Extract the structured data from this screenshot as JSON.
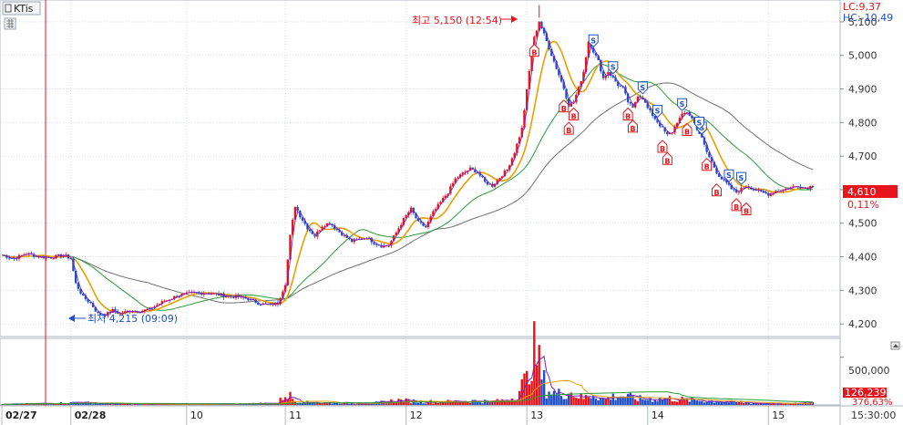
{
  "ticker": "KTis",
  "indicators": {
    "lc": "LC:9,37",
    "hc": "HC:-10,49"
  },
  "annotations": {
    "high": "최고 5,150 (12:54)",
    "low": "최저 4,215 (09:09)"
  },
  "price_tag": {
    "value": "4,610",
    "change": "0,11%"
  },
  "volume_tag": {
    "value": "126,239",
    "ratio": "376,63%"
  },
  "price_axis_labels": [
    "5,100",
    "5,000",
    "4,900",
    "4,800",
    "4,700",
    "4,600",
    "4,500",
    "4,400",
    "4,300",
    "4,200"
  ],
  "volume_axis_labels": [
    "500,000"
  ],
  "date_labels": [
    "02/27",
    "02/28",
    "10",
    "11",
    "12",
    "13",
    "14",
    "15"
  ],
  "time_label": "15:30:00",
  "colors": {
    "up": "#e8141c",
    "down": "#1f4fc8",
    "ma1": "#e8a000",
    "ma2": "#2a9a3a",
    "ma3": "#707070",
    "ma_fast": "#7a1fc8"
  },
  "chart_data": {
    "type": "candlestick",
    "price_ylim": [
      4165,
      5165
    ],
    "volume_ylim": [
      0,
      650000
    ],
    "legend": [],
    "day_labels": [
      "02/27",
      "02/28",
      "10",
      "11",
      "12",
      "13",
      "14",
      "15"
    ],
    "price_path": [
      [
        0,
        4405
      ],
      [
        5,
        4395
      ],
      [
        10,
        4410
      ],
      [
        15,
        4400
      ],
      [
        20,
        4398
      ],
      [
        25,
        4405
      ],
      [
        28,
        4395
      ],
      [
        30,
        4320
      ],
      [
        33,
        4280
      ],
      [
        36,
        4262
      ],
      [
        39,
        4230
      ],
      [
        42,
        4228
      ],
      [
        45,
        4240
      ],
      [
        48,
        4230
      ],
      [
        52,
        4240
      ],
      [
        56,
        4238
      ],
      [
        60,
        4244
      ],
      [
        66,
        4268
      ],
      [
        72,
        4286
      ],
      [
        78,
        4292
      ],
      [
        84,
        4292
      ],
      [
        90,
        4284
      ],
      [
        96,
        4280
      ],
      [
        100,
        4274
      ],
      [
        104,
        4262
      ],
      [
        108,
        4256
      ],
      [
        112,
        4262
      ],
      [
        115,
        4320
      ],
      [
        117,
        4462
      ],
      [
        119,
        4552
      ],
      [
        121,
        4522
      ],
      [
        124,
        4486
      ],
      [
        127,
        4462
      ],
      [
        130,
        4492
      ],
      [
        133,
        4502
      ],
      [
        136,
        4480
      ],
      [
        139,
        4462
      ],
      [
        142,
        4446
      ],
      [
        145,
        4452
      ],
      [
        148,
        4458
      ],
      [
        151,
        4442
      ],
      [
        154,
        4432
      ],
      [
        157,
        4434
      ],
      [
        160,
        4472
      ],
      [
        163,
        4512
      ],
      [
        166,
        4542
      ],
      [
        169,
        4502
      ],
      [
        172,
        4488
      ],
      [
        175,
        4532
      ],
      [
        178,
        4562
      ],
      [
        181,
        4592
      ],
      [
        184,
        4632
      ],
      [
        187,
        4648
      ],
      [
        190,
        4662
      ],
      [
        193,
        4652
      ],
      [
        196,
        4622
      ],
      [
        199,
        4612
      ],
      [
        202,
        4636
      ],
      [
        205,
        4660
      ],
      [
        208,
        4712
      ],
      [
        211,
        4782
      ],
      [
        214,
        4952
      ],
      [
        216,
        5052
      ],
      [
        218,
        5102
      ],
      [
        220,
        5062
      ],
      [
        222,
        5022
      ],
      [
        224,
        4982
      ],
      [
        226,
        4942
      ],
      [
        228,
        4902
      ],
      [
        230,
        4852
      ],
      [
        232,
        4862
      ],
      [
        234,
        4902
      ],
      [
        236,
        4952
      ],
      [
        238,
        5042
      ],
      [
        240,
        5012
      ],
      [
        242,
        4982
      ],
      [
        244,
        4932
      ],
      [
        246,
        4952
      ],
      [
        248,
        4932
      ],
      [
        250,
        4912
      ],
      [
        252,
        4902
      ],
      [
        254,
        4862
      ],
      [
        256,
        4842
      ],
      [
        258,
        4882
      ],
      [
        260,
        4872
      ],
      [
        262,
        4842
      ],
      [
        264,
        4822
      ],
      [
        266,
        4802
      ],
      [
        268,
        4782
      ],
      [
        270,
        4762
      ],
      [
        272,
        4772
      ],
      [
        274,
        4802
      ],
      [
        276,
        4822
      ],
      [
        278,
        4832
      ],
      [
        280,
        4812
      ],
      [
        282,
        4782
      ],
      [
        284,
        4752
      ],
      [
        286,
        4712
      ],
      [
        288,
        4682
      ],
      [
        290,
        4652
      ],
      [
        292,
        4632
      ],
      [
        294,
        4618
      ],
      [
        296,
        4602
      ],
      [
        298,
        4592
      ],
      [
        300,
        4602
      ],
      [
        302,
        4612
      ],
      [
        305,
        4602
      ],
      [
        308,
        4592
      ],
      [
        311,
        4586
      ],
      [
        314,
        4596
      ],
      [
        317,
        4600
      ],
      [
        320,
        4606
      ],
      [
        323,
        4612
      ],
      [
        326,
        4604
      ],
      [
        329,
        4612
      ]
    ],
    "volume_profile": [
      [
        0,
        6000
      ],
      [
        28,
        22000
      ],
      [
        30,
        32000
      ],
      [
        40,
        14000
      ],
      [
        60,
        8000
      ],
      [
        90,
        9000
      ],
      [
        112,
        20000
      ],
      [
        115,
        110000
      ],
      [
        117,
        95000
      ],
      [
        119,
        42000
      ],
      [
        125,
        26000
      ],
      [
        150,
        16000
      ],
      [
        160,
        50000
      ],
      [
        170,
        36000
      ],
      [
        180,
        34000
      ],
      [
        190,
        44000
      ],
      [
        200,
        36000
      ],
      [
        205,
        56000
      ],
      [
        208,
        80000
      ],
      [
        211,
        200000
      ],
      [
        213,
        260000
      ],
      [
        215,
        590000
      ],
      [
        217,
        520000
      ],
      [
        219,
        310000
      ],
      [
        221,
        170000
      ],
      [
        225,
        110000
      ],
      [
        230,
        140000
      ],
      [
        236,
        70000
      ],
      [
        240,
        120000
      ],
      [
        244,
        60000
      ],
      [
        250,
        100000
      ],
      [
        260,
        60000
      ],
      [
        270,
        70000
      ],
      [
        280,
        50000
      ],
      [
        290,
        40000
      ],
      [
        300,
        25000
      ],
      [
        310,
        15000
      ],
      [
        320,
        12000
      ],
      [
        328,
        30000
      ],
      [
        329,
        60000
      ]
    ],
    "signals": [
      {
        "type": "B",
        "i": 216
      },
      {
        "type": "B",
        "i": 228
      },
      {
        "type": "B",
        "i": 230
      },
      {
        "type": "B",
        "i": 232
      },
      {
        "type": "S",
        "i": 240
      },
      {
        "type": "S",
        "i": 248
      },
      {
        "type": "B",
        "i": 254
      },
      {
        "type": "B",
        "i": 256
      },
      {
        "type": "S",
        "i": 260
      },
      {
        "type": "S",
        "i": 266
      },
      {
        "type": "B",
        "i": 268
      },
      {
        "type": "B",
        "i": 270
      },
      {
        "type": "S",
        "i": 276
      },
      {
        "type": "B",
        "i": 278
      },
      {
        "type": "S",
        "i": 284
      },
      {
        "type": "B",
        "i": 286
      },
      {
        "type": "B",
        "i": 290
      },
      {
        "type": "S",
        "i": 295
      },
      {
        "type": "B",
        "i": 298
      },
      {
        "type": "S",
        "i": 300
      },
      {
        "type": "B",
        "i": 302
      },
      {
        "type": "S",
        "i": 283
      }
    ],
    "high_point": {
      "i": 218,
      "price": 5150
    },
    "low_point": {
      "i": 40,
      "price": 4215
    },
    "last_price": 4610,
    "change_pct": 0.11
  }
}
